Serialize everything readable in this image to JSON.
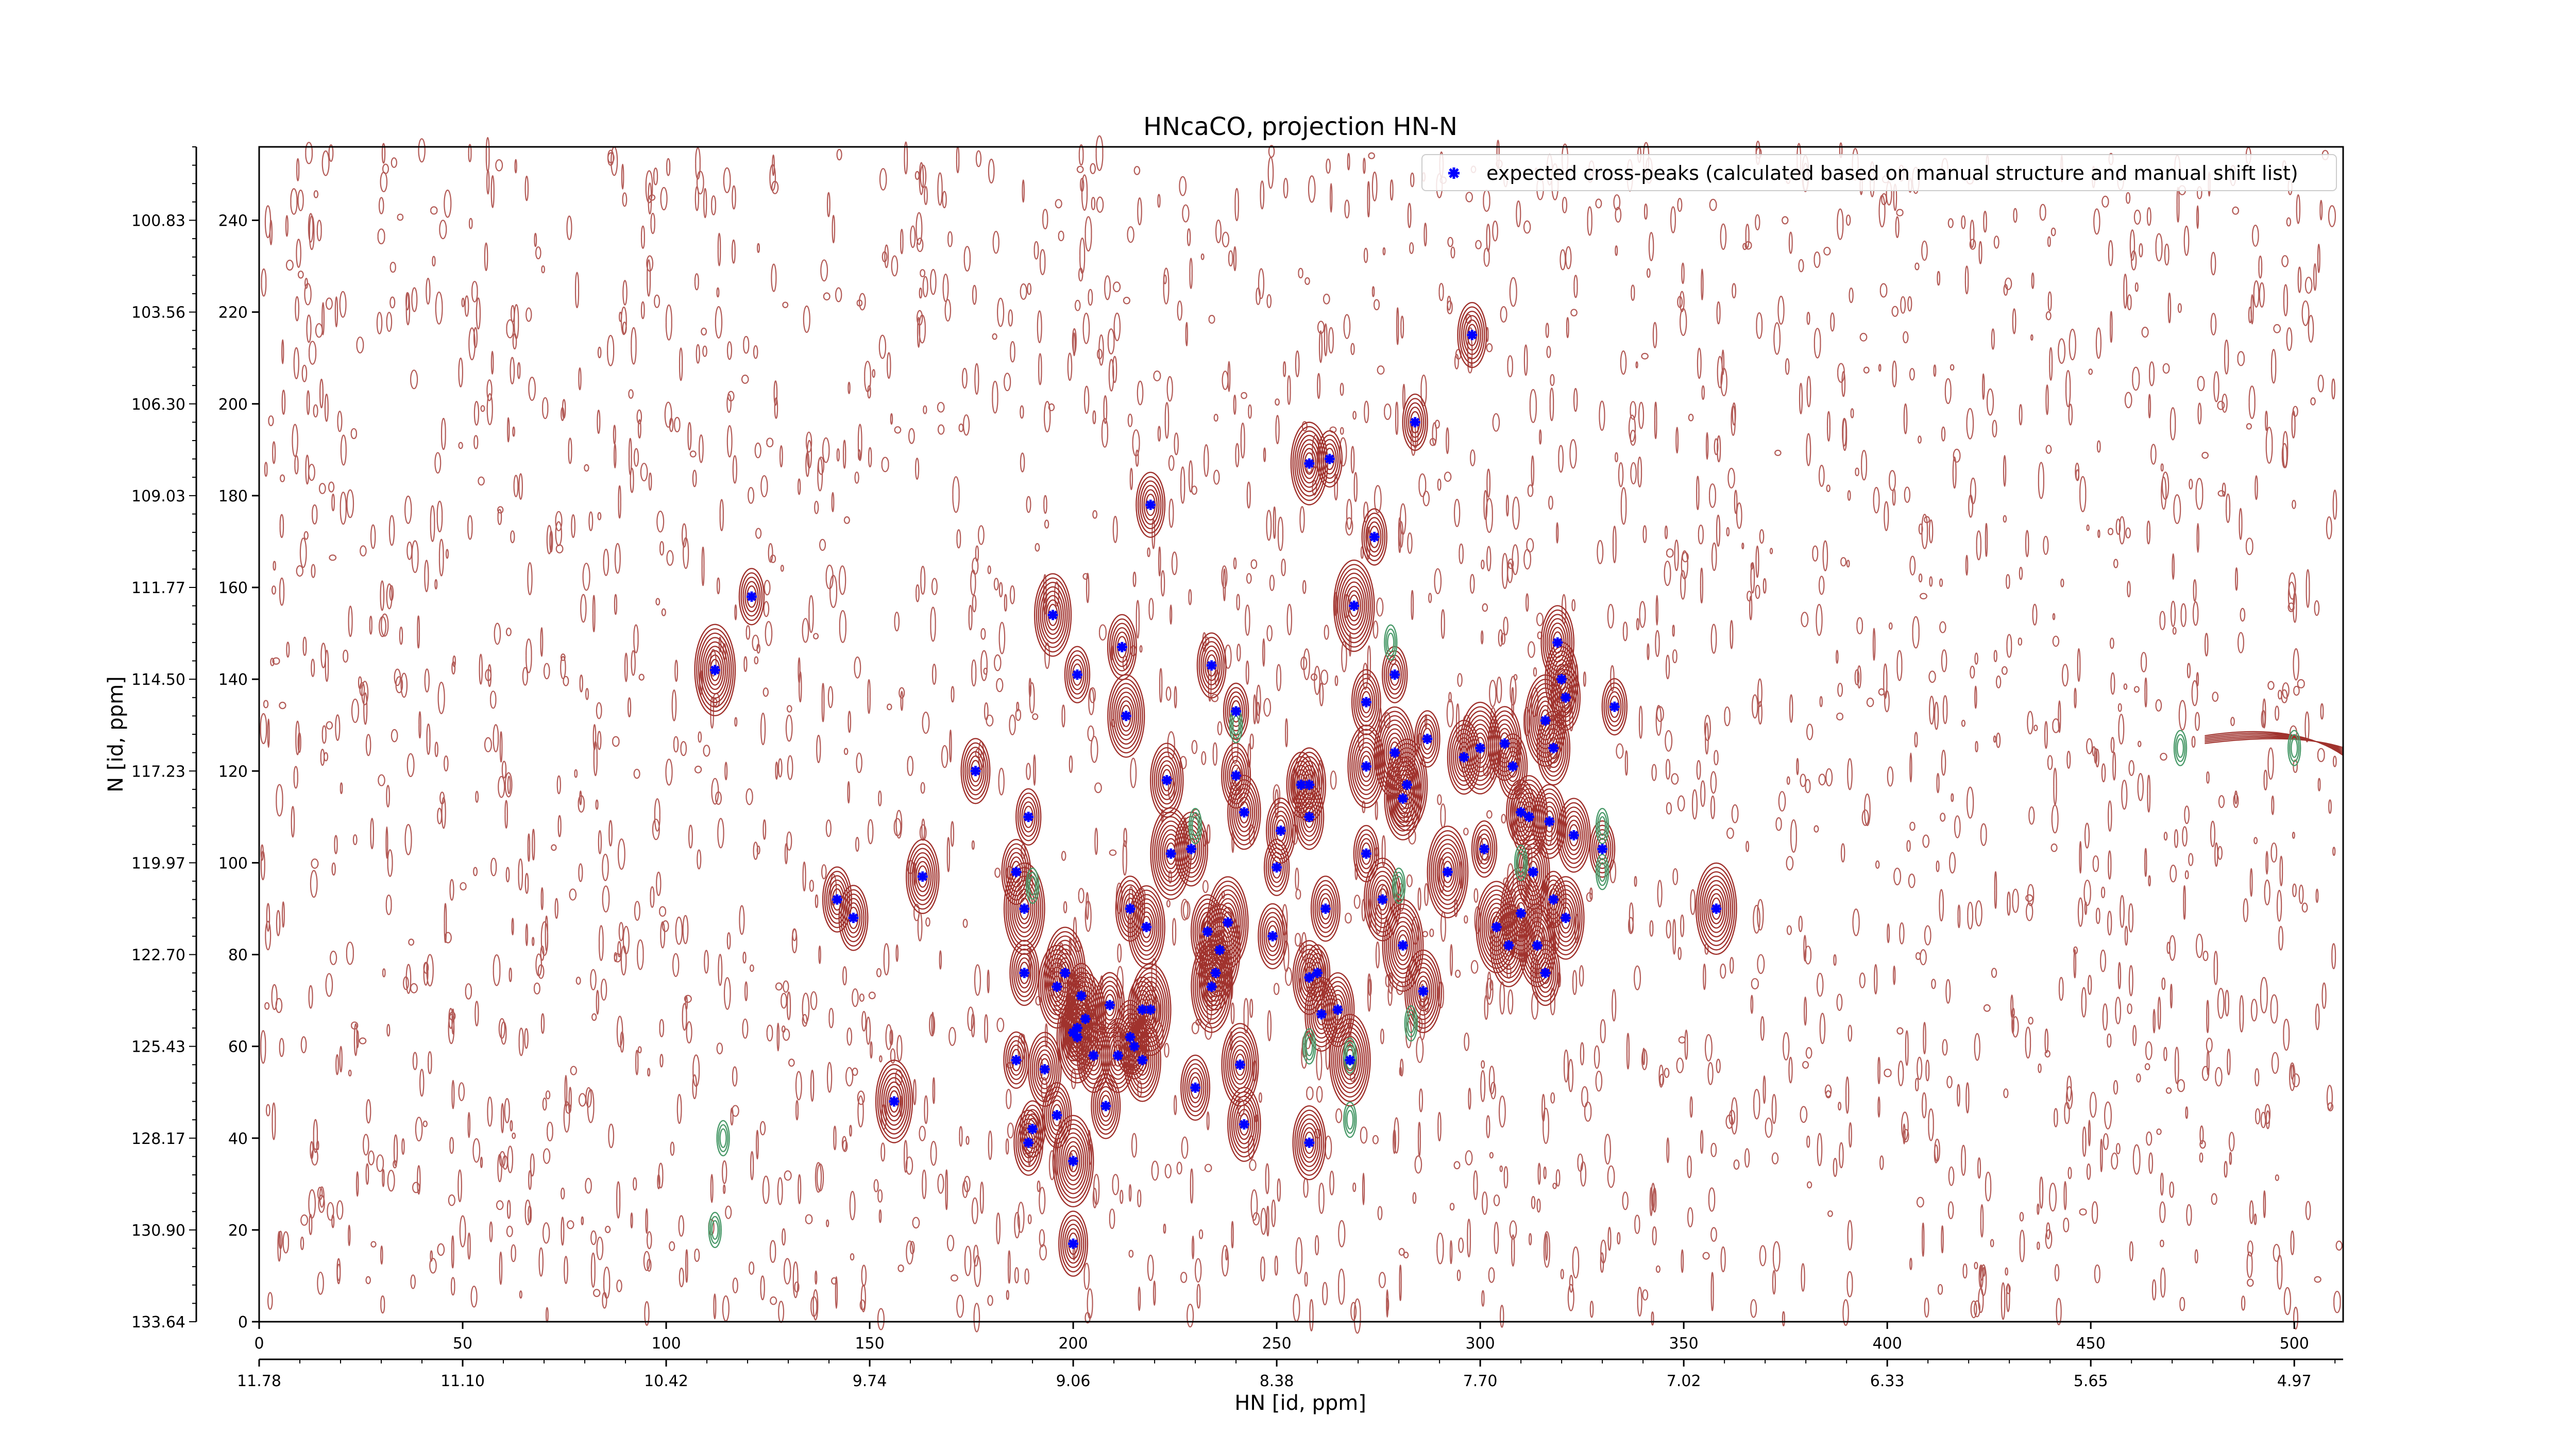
{
  "chart_data": {
    "type": "scatter",
    "title": "HNcaCO, projection HN-N",
    "xlabel": "HN [id, ppm]",
    "ylabel": "N [id, ppm]",
    "xlim": [
      0,
      512
    ],
    "ylim": [
      0,
      256
    ],
    "x_ticks": [
      0,
      50,
      100,
      150,
      200,
      250,
      300,
      350,
      400,
      450,
      500
    ],
    "y_ticks": [
      0,
      20,
      40,
      60,
      80,
      100,
      120,
      140,
      160,
      180,
      200,
      220,
      240
    ],
    "x_ppm_ticks": [
      {
        "pos": 0,
        "label": "11.78"
      },
      {
        "pos": 50,
        "label": "11.10"
      },
      {
        "pos": 100,
        "label": "10.42"
      },
      {
        "pos": 150,
        "label": "9.74"
      },
      {
        "pos": 200,
        "label": "9.06"
      },
      {
        "pos": 250,
        "label": "8.38"
      },
      {
        "pos": 300,
        "label": "7.70"
      },
      {
        "pos": 350,
        "label": "7.02"
      },
      {
        "pos": 400,
        "label": "6.33"
      },
      {
        "pos": 450,
        "label": "5.65"
      },
      {
        "pos": 500,
        "label": "4.97"
      }
    ],
    "y_ppm_ticks": [
      {
        "pos": 0,
        "label": "133.64"
      },
      {
        "pos": 20,
        "label": "130.90"
      },
      {
        "pos": 40,
        "label": "128.17"
      },
      {
        "pos": 60,
        "label": "125.43"
      },
      {
        "pos": 80,
        "label": "122.70"
      },
      {
        "pos": 100,
        "label": "119.97"
      },
      {
        "pos": 120,
        "label": "117.23"
      },
      {
        "pos": 140,
        "label": "114.50"
      },
      {
        "pos": 160,
        "label": "111.77"
      },
      {
        "pos": 180,
        "label": "109.03"
      },
      {
        "pos": 200,
        "label": "106.30"
      },
      {
        "pos": 220,
        "label": "103.56"
      },
      {
        "pos": 240,
        "label": "100.83"
      }
    ],
    "legend": {
      "placement": "top-right",
      "label": "expected cross-peaks (calculated based on manual structure and manual shift list)"
    },
    "colors": {
      "marker": "#0000ff",
      "positive_contour": "#a0322d",
      "negative_contour": "#4a9a6a"
    },
    "series": [
      {
        "name": "expected cross-peaks (calculated based on manual structure and manual shift list)",
        "points": [
          [
            298,
            215
          ],
          [
            284,
            196
          ],
          [
            258,
            187
          ],
          [
            263,
            188
          ],
          [
            219,
            178
          ],
          [
            274,
            171
          ],
          [
            269,
            156
          ],
          [
            121,
            158
          ],
          [
            112,
            142
          ],
          [
            195,
            154
          ],
          [
            201,
            141
          ],
          [
            212,
            147
          ],
          [
            234,
            143
          ],
          [
            279,
            141
          ],
          [
            319,
            148
          ],
          [
            320,
            140
          ],
          [
            321,
            136
          ],
          [
            333,
            134
          ],
          [
            213,
            132
          ],
          [
            240,
            133
          ],
          [
            272,
            135
          ],
          [
            316,
            131
          ],
          [
            318,
            125
          ],
          [
            287,
            127
          ],
          [
            279,
            124
          ],
          [
            296,
            123
          ],
          [
            300,
            125
          ],
          [
            306,
            126
          ],
          [
            176,
            120
          ],
          [
            223,
            118
          ],
          [
            240,
            119
          ],
          [
            256,
            117
          ],
          [
            258,
            117
          ],
          [
            272,
            121
          ],
          [
            282,
            117
          ],
          [
            308,
            121
          ],
          [
            281,
            114
          ],
          [
            189,
            110
          ],
          [
            242,
            111
          ],
          [
            258,
            110
          ],
          [
            224,
            102
          ],
          [
            229,
            103
          ],
          [
            251,
            107
          ],
          [
            250,
            99
          ],
          [
            272,
            102
          ],
          [
            292,
            98
          ],
          [
            301,
            103
          ],
          [
            310,
            111
          ],
          [
            312,
            110
          ],
          [
            317,
            109
          ],
          [
            323,
            106
          ],
          [
            330,
            103
          ],
          [
            163,
            97
          ],
          [
            186,
            98
          ],
          [
            313,
            98
          ],
          [
            142,
            92
          ],
          [
            146,
            88
          ],
          [
            188,
            90
          ],
          [
            214,
            90
          ],
          [
            218,
            86
          ],
          [
            233,
            85
          ],
          [
            238,
            87
          ],
          [
            262,
            90
          ],
          [
            276,
            92
          ],
          [
            310,
            89
          ],
          [
            318,
            92
          ],
          [
            321,
            88
          ],
          [
            249,
            84
          ],
          [
            236,
            81
          ],
          [
            258,
            75
          ],
          [
            281,
            82
          ],
          [
            304,
            86
          ],
          [
            307,
            82
          ],
          [
            314,
            82
          ],
          [
            358,
            90
          ],
          [
            188,
            76
          ],
          [
            196,
            73
          ],
          [
            202,
            71
          ],
          [
            235,
            76
          ],
          [
            234,
            73
          ],
          [
            260,
            76
          ],
          [
            286,
            72
          ],
          [
            316,
            76
          ],
          [
            198,
            76
          ],
          [
            209,
            69
          ],
          [
            217,
            68
          ],
          [
            219,
            68
          ],
          [
            261,
            67
          ],
          [
            265,
            68
          ],
          [
            200,
            63
          ],
          [
            201,
            64
          ],
          [
            205,
            58
          ],
          [
            211,
            58
          ],
          [
            214,
            62
          ],
          [
            215,
            60
          ],
          [
            217,
            57
          ],
          [
            186,
            57
          ],
          [
            193,
            55
          ],
          [
            241,
            56
          ],
          [
            268,
            57
          ],
          [
            203,
            66
          ],
          [
            201,
            62
          ],
          [
            230,
            51
          ],
          [
            156,
            48
          ],
          [
            208,
            47
          ],
          [
            196,
            45
          ],
          [
            242,
            43
          ],
          [
            190,
            42
          ],
          [
            189,
            39
          ],
          [
            258,
            39
          ],
          [
            200,
            35
          ],
          [
            200,
            17
          ]
        ]
      }
    ]
  }
}
